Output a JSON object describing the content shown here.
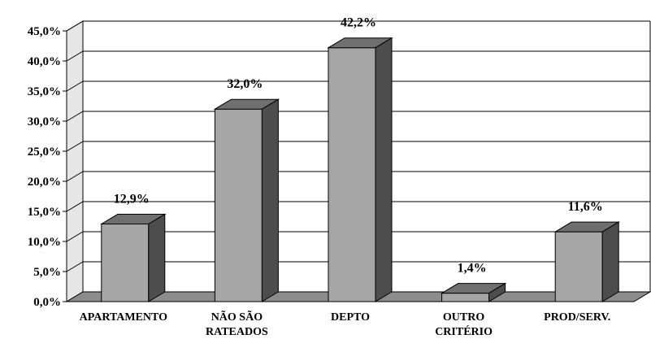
{
  "chart_data": {
    "type": "bar",
    "categories": [
      [
        "APARTAMENTO"
      ],
      [
        "NÃO SÃO",
        "RATEADOS"
      ],
      [
        "DEPTO"
      ],
      [
        "OUTRO",
        "CRITÉRIO"
      ],
      [
        "PROD/SERV."
      ]
    ],
    "values": [
      12.9,
      32.0,
      42.2,
      1.4,
      11.6
    ],
    "data_labels": [
      "12,9%",
      "32,0%",
      "42,2%",
      "1,4%",
      "11,6%"
    ],
    "y_ticks": [
      "0,0%",
      "5,0%",
      "10,0%",
      "15,0%",
      "20,0%",
      "25,0%",
      "30,0%",
      "35,0%",
      "40,0%",
      "45,0%"
    ],
    "ylim": [
      0,
      45
    ],
    "grid": true,
    "style": "3d-bar",
    "colors": {
      "bar_front": "#a6a6a6",
      "bar_top": "#6f6f6f",
      "bar_side": "#4d4d4d",
      "floor": "#8c8c8c",
      "wall_side": "#e6e6e6"
    }
  }
}
